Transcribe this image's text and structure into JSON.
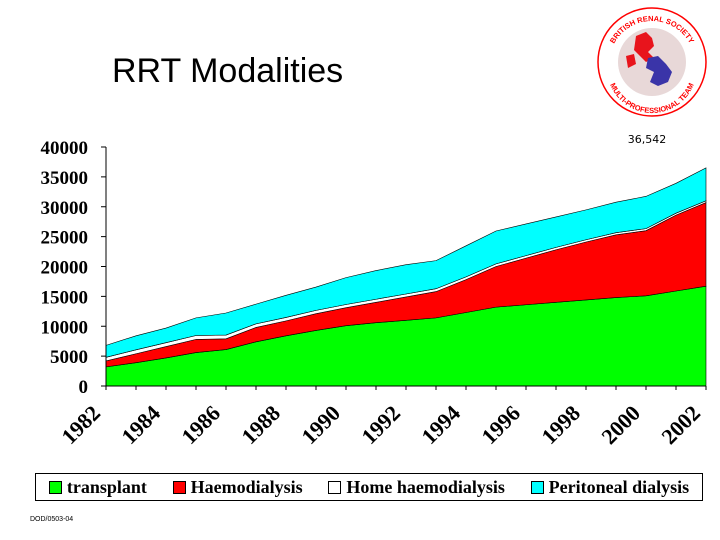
{
  "slide_title": "RRT Modalities",
  "footer_text": "DOD/0503-04",
  "logo": {
    "top_text": "BRITISH RENAL SOCIETY",
    "bottom_text": "MULTI-PROFESSIONAL TEAM",
    "colors": {
      "outer": "#ff0000",
      "inner": "#e8d8d8",
      "map_red": "#e8141c",
      "map_blue": "#3a34a8"
    }
  },
  "chart_data": {
    "type": "area",
    "stacked": true,
    "x": [
      1982,
      1983,
      1984,
      1985,
      1986,
      1987,
      1988,
      1989,
      1990,
      1991,
      1992,
      1993,
      1994,
      1995,
      1996,
      1997,
      1998,
      1999,
      2000,
      2001,
      2002
    ],
    "x_tick_labels": [
      "1982",
      "1984",
      "1986",
      "1988",
      "1990",
      "1992",
      "1994",
      "1996",
      "1998",
      "2000",
      "2002"
    ],
    "y_tick_labels": [
      "0",
      "5000",
      "10000",
      "15000",
      "20000",
      "25000",
      "30000",
      "35000",
      "40000"
    ],
    "ylim": [
      0,
      40000
    ],
    "series": [
      {
        "name": "transplant",
        "color": "#00ff00",
        "values": [
          3200,
          3900,
          4700,
          5600,
          6100,
          7400,
          8400,
          9300,
          10100,
          10600,
          11000,
          11400,
          12300,
          13200,
          13600,
          14000,
          14400,
          14800,
          15100,
          15900,
          16700
        ]
      },
      {
        "name": "Haemodialysis",
        "color": "#ff0000",
        "values": [
          1000,
          1500,
          1900,
          2200,
          1800,
          2400,
          2500,
          2800,
          3000,
          3400,
          3900,
          4400,
          5500,
          6800,
          7800,
          8800,
          9700,
          10500,
          10900,
          12700,
          14000
        ]
      },
      {
        "name": "Home haemodialysis",
        "color": "#ffffff",
        "values": [
          600,
          650,
          650,
          650,
          620,
          600,
          580,
          560,
          540,
          520,
          500,
          480,
          460,
          440,
          420,
          400,
          380,
          360,
          340,
          320,
          300
        ]
      },
      {
        "name": "Peritoneal dialysis",
        "color": "#00ffff",
        "values": [
          2000,
          2350,
          2450,
          2950,
          3700,
          3300,
          3700,
          3900,
          4500,
          4800,
          4900,
          4700,
          5200,
          5500,
          5300,
          5100,
          5000,
          5100,
          5400,
          5000,
          5500
        ]
      }
    ],
    "annotation": "36,542",
    "grid": false,
    "legend_position": "bottom"
  }
}
